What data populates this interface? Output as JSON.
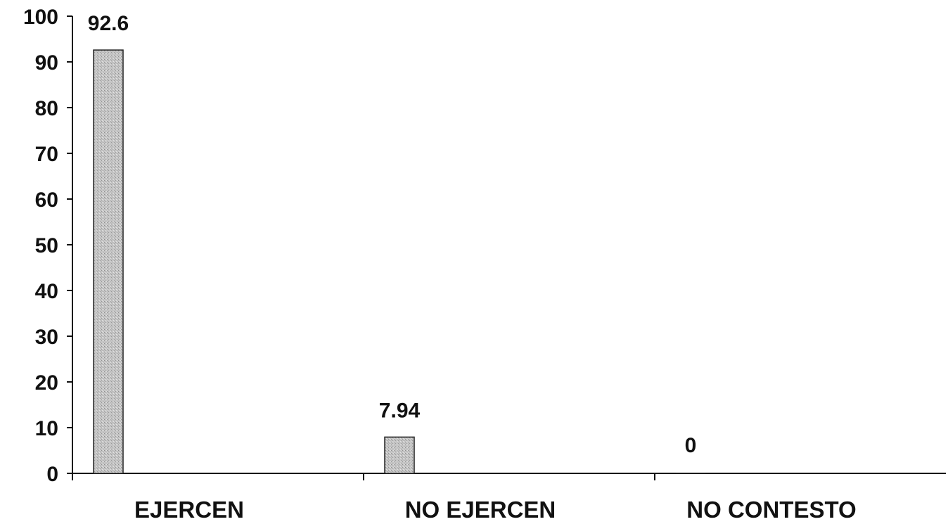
{
  "chart_data": {
    "type": "bar",
    "categories": [
      "EJERCEN",
      "NO EJERCEN",
      "NO CONTESTO"
    ],
    "values": [
      92.6,
      7.94,
      0
    ],
    "data_labels": [
      "92.6",
      "7.94",
      "0"
    ],
    "y_ticks": [
      "0",
      "10",
      "20",
      "30",
      "40",
      "50",
      "60",
      "70",
      "80",
      "90",
      "100"
    ],
    "ylim": [
      0,
      100
    ],
    "title": "",
    "xlabel": "",
    "ylabel": "",
    "grid": false,
    "legend": "none",
    "colors": {
      "bar_fill": "#b9b9b9",
      "bar_stroke": "#222222",
      "axis": "#111111",
      "text": "#111111",
      "background": "#ffffff"
    }
  }
}
